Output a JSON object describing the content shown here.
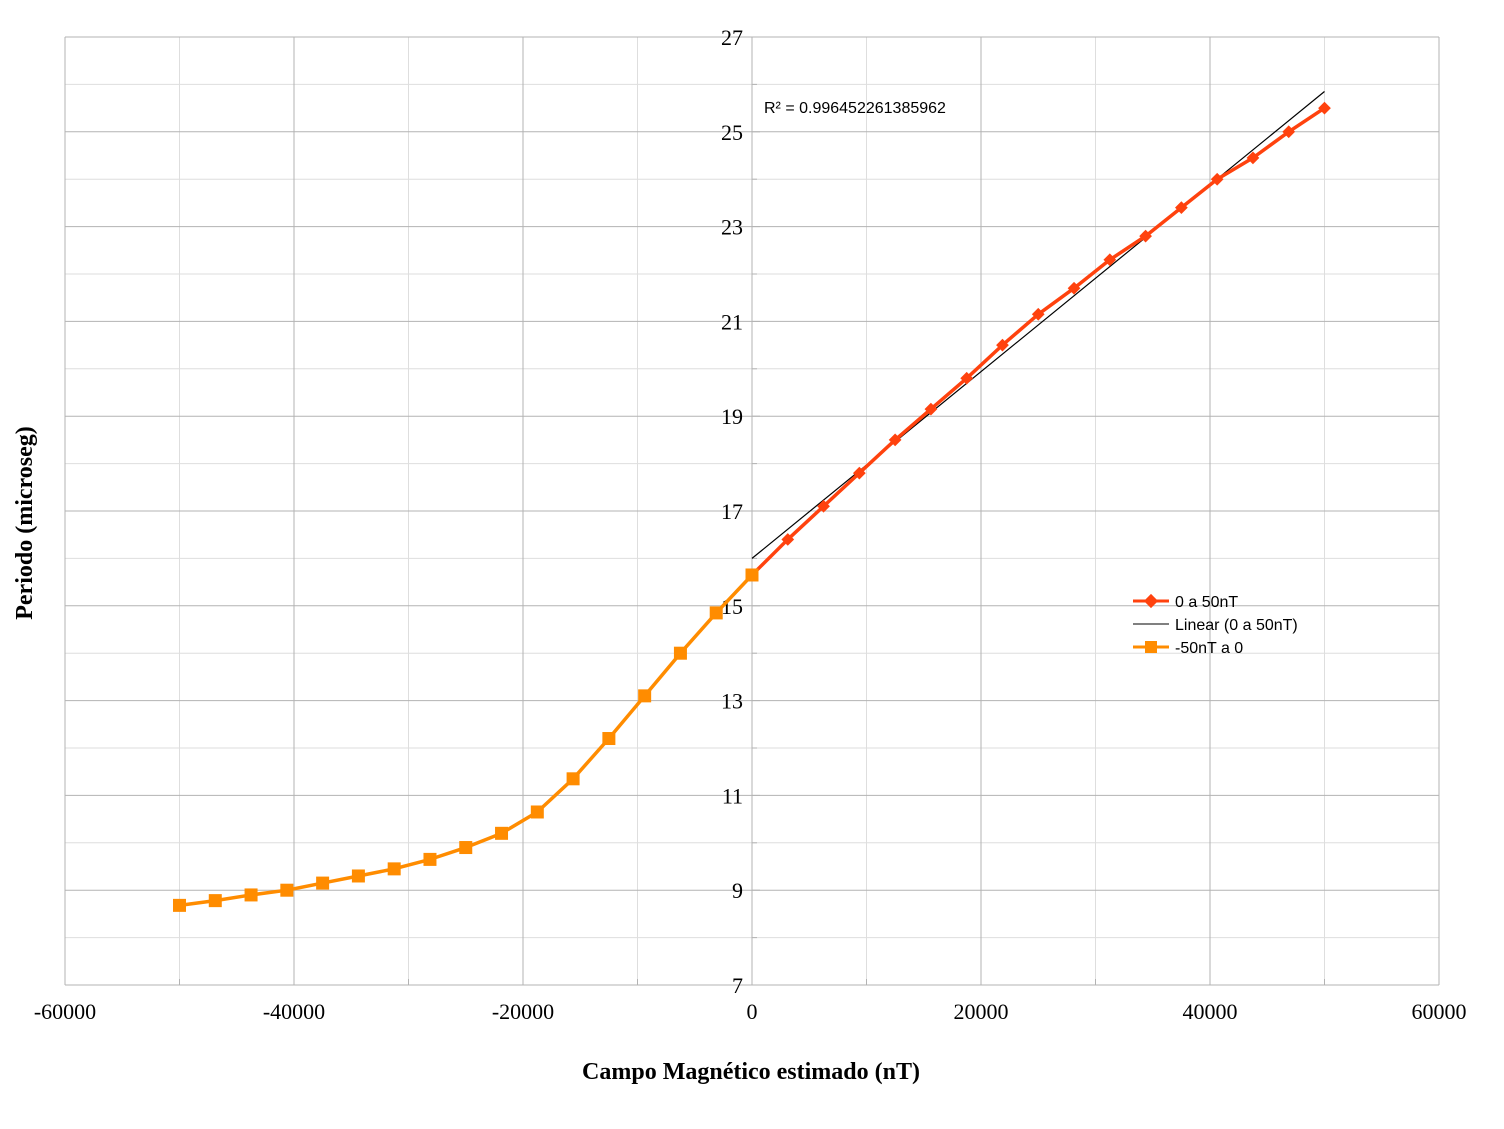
{
  "chart_data": {
    "type": "scatter",
    "xlabel": "Campo Magnético estimado (nT)",
    "ylabel": "Periodo (microseg)",
    "xlim": [
      -60000,
      60000
    ],
    "ylim": [
      7,
      27
    ],
    "x_ticks": [
      -60000,
      -40000,
      -20000,
      0,
      20000,
      40000,
      60000
    ],
    "y_ticks": [
      7,
      9,
      11,
      13,
      15,
      17,
      19,
      21,
      23,
      25,
      27
    ],
    "grid": true,
    "legend_position": "right",
    "annotation": "R² = 0.996452261385962",
    "series": [
      {
        "name": "0 a 50nT",
        "color": "#ff420e",
        "marker": "diamond",
        "x": [
          0,
          3125,
          6250,
          9375,
          12500,
          15625,
          18750,
          21875,
          25000,
          28125,
          31250,
          34375,
          37500,
          40625,
          43750,
          46875,
          50000
        ],
        "y": [
          15.65,
          16.4,
          17.1,
          17.8,
          18.5,
          19.15,
          19.8,
          20.5,
          21.15,
          21.7,
          22.3,
          22.8,
          23.4,
          24.0,
          24.45,
          25.0,
          25.5
        ]
      },
      {
        "name": "Linear (0 a 50nT)",
        "color": "#000000",
        "marker": "none",
        "x": [
          0,
          50000
        ],
        "y": [
          16.0,
          25.85
        ]
      },
      {
        "name": "-50nT a 0",
        "color": "#ff8c00",
        "marker": "square",
        "x": [
          -50000,
          -46875,
          -43750,
          -40625,
          -37500,
          -34375,
          -31250,
          -28125,
          -25000,
          -21875,
          -18750,
          -15625,
          -12500,
          -9375,
          -6250,
          -3125,
          0
        ],
        "y": [
          8.68,
          8.78,
          8.9,
          9.0,
          9.15,
          9.3,
          9.45,
          9.65,
          9.9,
          10.2,
          10.65,
          11.35,
          12.2,
          13.1,
          14.0,
          14.85,
          15.65
        ]
      }
    ]
  }
}
